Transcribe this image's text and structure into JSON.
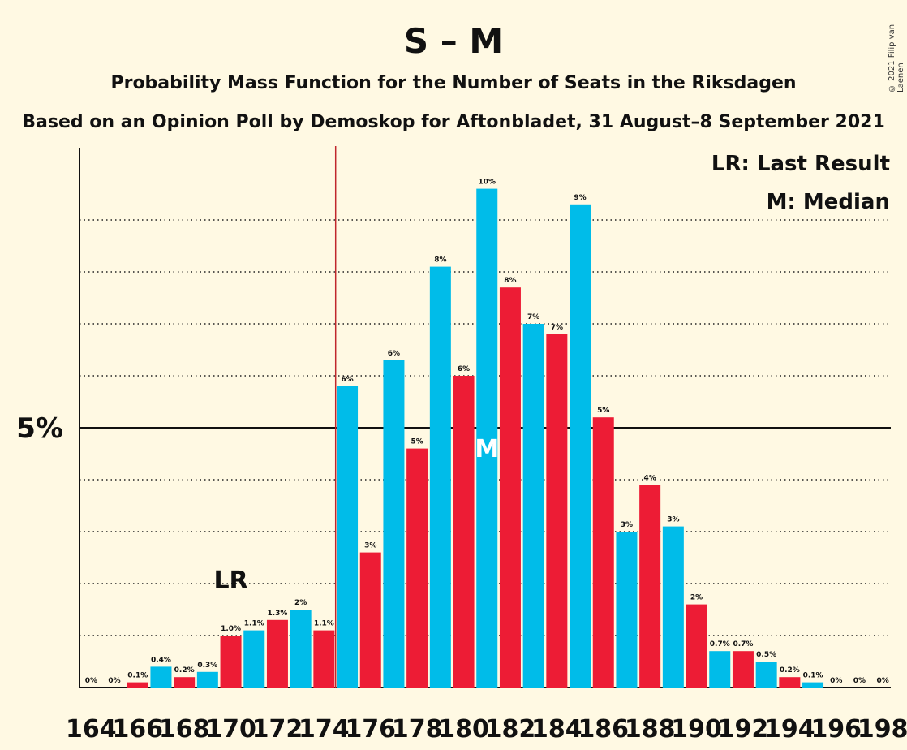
{
  "title": "S – M",
  "subtitle": "Probability Mass Function for the Number of Seats in the Riksdagen",
  "subtitle2": "Based on an Opinion Poll by Demoskop for Aftonbladet, 31 August–8 September 2021",
  "copyright": "© 2021 Filip van Laenen",
  "legend": {
    "lr": "LR: Last Result",
    "m": "M: Median"
  },
  "colors": {
    "blue": "#00bce9",
    "red": "#ed1c35",
    "background": "#fff9e3",
    "line": "#c0272d"
  },
  "chart_data": {
    "type": "bar",
    "categories": [
      164,
      165,
      166,
      167,
      168,
      169,
      170,
      171,
      172,
      173,
      174,
      175,
      176,
      177,
      178,
      179,
      180,
      181,
      182,
      183,
      184,
      185,
      186,
      187,
      188,
      189,
      190,
      191,
      192,
      193,
      194,
      195,
      196,
      197,
      198
    ],
    "values": [
      0,
      0,
      0.1,
      0.4,
      0.2,
      0.3,
      1.0,
      1.1,
      1.3,
      1.5,
      1.1,
      5.8,
      2.6,
      6.3,
      4.6,
      8.1,
      6.0,
      9.6,
      7.7,
      7.0,
      6.8,
      9.3,
      5.2,
      3.0,
      3.9,
      3.1,
      1.6,
      0.7,
      0.7,
      0.5,
      0.2,
      0.1,
      0,
      0,
      0
    ],
    "data_labels": [
      "0%",
      "0%",
      "0.1%",
      "0.4%",
      "0.2%",
      "0.3%",
      "1.0%",
      "1.1%",
      "1.3%",
      "2%",
      "1.1%",
      "6%",
      "3%",
      "6%",
      "5%",
      "8%",
      "6%",
      "10%",
      "8%",
      "7%",
      "7%",
      "9%",
      "5%",
      "3%",
      "4%",
      "3%",
      "2%",
      "0.7%",
      "0.7%",
      "0.5%",
      "0.2%",
      "0.1%",
      "0%",
      "0%",
      "0%"
    ],
    "x_tick_labels": [
      "164",
      "166",
      "168",
      "170",
      "172",
      "174",
      "176",
      "178",
      "180",
      "182",
      "184",
      "186",
      "188",
      "190",
      "192",
      "194",
      "196",
      "198"
    ],
    "y_tick_label": "5%",
    "y_tick_value": 5,
    "ylim": [
      0,
      10.5
    ],
    "last_result": 170,
    "last_result_label": "LR",
    "median": 181,
    "median_label": "M",
    "majority_line": 174.5
  }
}
